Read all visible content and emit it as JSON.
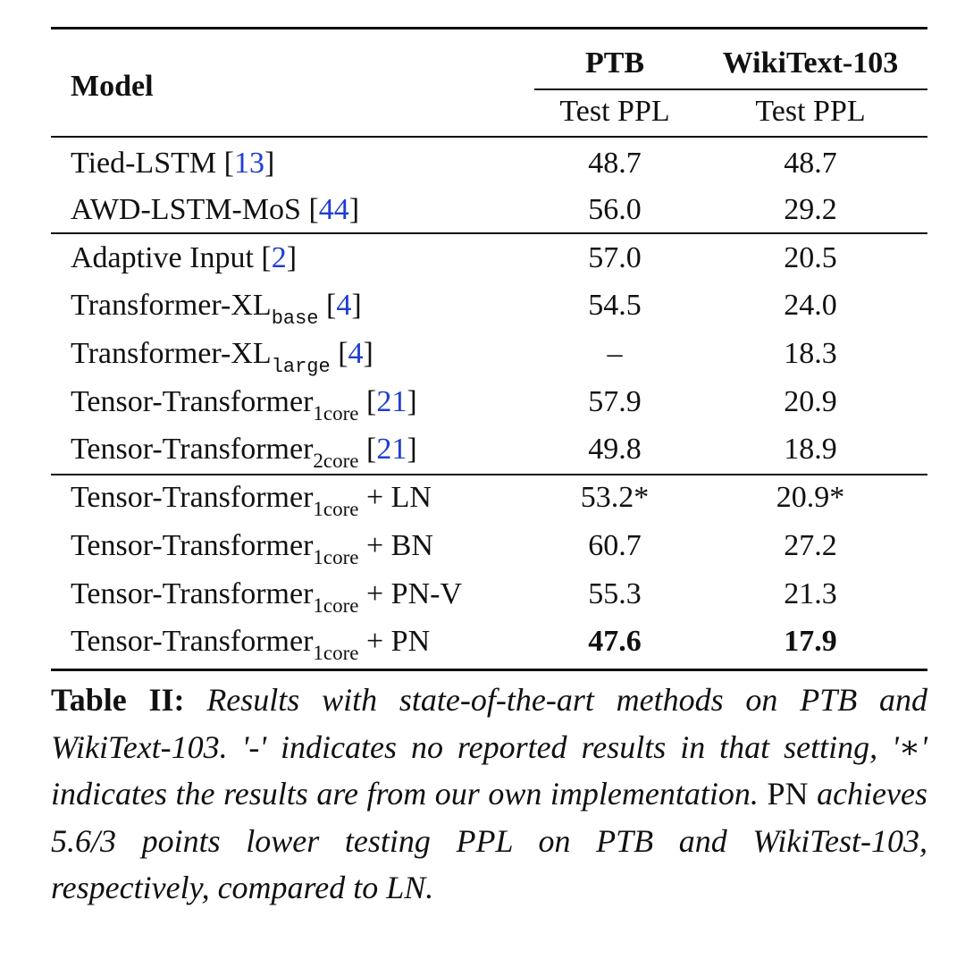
{
  "table": {
    "header": {
      "model": "Model",
      "ptb": "PTB",
      "wiki": "WikiText-103",
      "ptb_metric": "Test PPL",
      "wiki_metric": "Test PPL"
    },
    "rows": [
      {
        "name": "Tied-LSTM",
        "sub": "",
        "suffix": "",
        "ref": "13",
        "ptb": "48.7",
        "wiki": "48.7",
        "bold": false
      },
      {
        "name": "AWD-LSTM-MoS",
        "sub": "",
        "suffix": "",
        "ref": "44",
        "ptb": "56.0",
        "wiki": "29.2",
        "bold": false
      },
      {
        "name": "Adaptive Input",
        "sub": "",
        "suffix": "",
        "ref": "2",
        "ptb": "57.0",
        "wiki": "20.5",
        "bold": false
      },
      {
        "name": "Transformer-XL",
        "sub": "base",
        "suffix": "",
        "ref": "4",
        "ptb": "54.5",
        "wiki": "24.0",
        "bold": false
      },
      {
        "name": "Transformer-XL",
        "sub": "large",
        "suffix": "",
        "ref": "4",
        "ptb": "–",
        "wiki": "18.3",
        "bold": false
      },
      {
        "name": "Tensor-Transformer",
        "sub": "1core",
        "suffix": "",
        "ref": "21",
        "ptb": "57.9",
        "wiki": "20.9",
        "bold": false
      },
      {
        "name": "Tensor-Transformer",
        "sub": "2core",
        "suffix": "",
        "ref": "21",
        "ptb": "49.8",
        "wiki": "18.9",
        "bold": false
      },
      {
        "name": "Tensor-Transformer",
        "sub": "1core",
        "suffix": "+ LN",
        "ref": "",
        "ptb": "53.2*",
        "wiki": "20.9*",
        "bold": false
      },
      {
        "name": "Tensor-Transformer",
        "sub": "1core",
        "suffix": "+ BN",
        "ref": "",
        "ptb": "60.7",
        "wiki": "27.2",
        "bold": false
      },
      {
        "name": "Tensor-Transformer",
        "sub": "1core",
        "suffix": "+ PN-V",
        "ref": "",
        "ptb": "55.3",
        "wiki": "21.3",
        "bold": false
      },
      {
        "name": "Tensor-Transformer",
        "sub": "1core",
        "suffix": "+ PN",
        "ref": "",
        "ptb": "47.6",
        "wiki": "17.9",
        "bold": true
      }
    ]
  },
  "caption": {
    "label": "Table II:",
    "part1": "Results with state-of-the-art methods on PTB and WikiText-103. '-' indicates no reported results in that setting, '",
    "star": "∗",
    "part2": "' indicates the results are from our own implementation.",
    "pn": "PN",
    "part3": "achieves 5.6/3 points lower testing PPL on PTB and WikiTest-103, respectively, compared to LN."
  }
}
